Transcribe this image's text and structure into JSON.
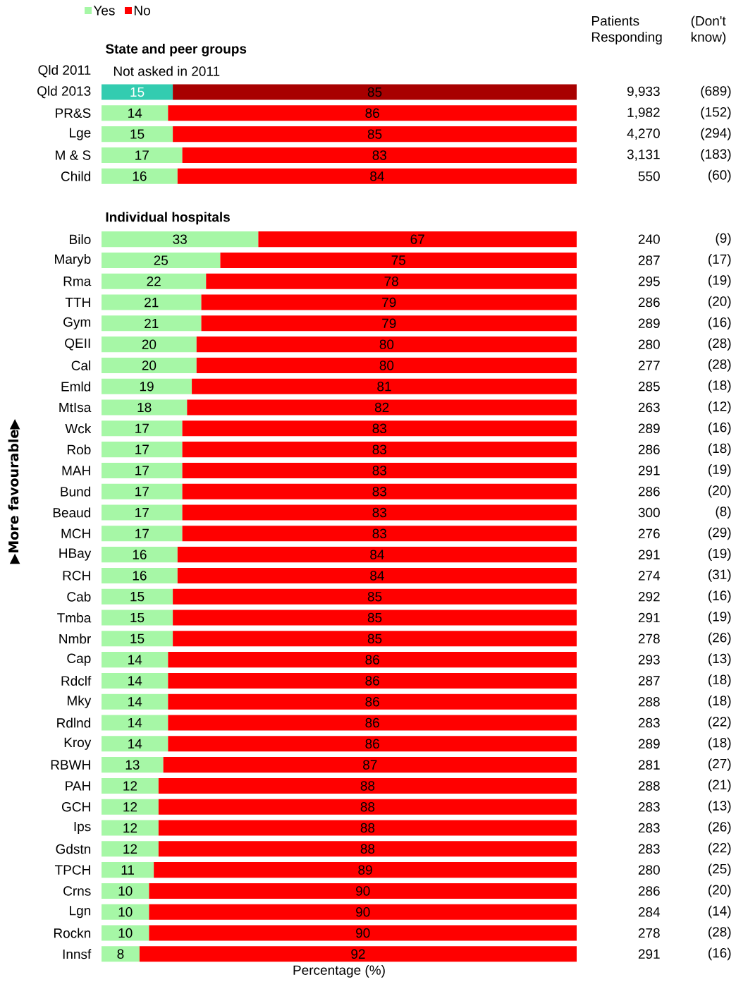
{
  "chart_data": {
    "type": "bar",
    "orientation": "horizontal",
    "stacked": true,
    "data_labels": true,
    "legend": "top left",
    "xlabel": "Percentage (%)",
    "ylabel": "▶More favourable▶",
    "xlim": [
      0,
      100
    ],
    "categories": [
      null,
      "Qld 2011",
      "Qld 2013",
      "PR&S",
      "Lge",
      "M & S",
      "Child",
      null,
      null,
      "Bilo",
      "Maryb",
      "Rma",
      "TTH",
      "Gym",
      "QEII",
      "Cal",
      "Emld",
      "MtIsa",
      "Wck",
      "Rob",
      "MAH",
      "Bund",
      "Beaud",
      "MCH",
      "HBay",
      "RCH",
      "Cab",
      "Tmba",
      "Nmbr",
      "Cap",
      "Rdclf",
      "Mky",
      "Rdlnd",
      "Kroy",
      "RBWH",
      "PAH",
      "GCH",
      "Ips",
      "Gdstn",
      "TPCH",
      "Crns",
      "Lgn",
      "Rockn",
      "Innsf"
    ],
    "series": [
      {
        "name": "Yes",
        "color": "#a6f7a6",
        "values": [
          null,
          null,
          15,
          14,
          15,
          17,
          16,
          null,
          null,
          33,
          25,
          22,
          21,
          21,
          20,
          20,
          19,
          18,
          17,
          17,
          17,
          17,
          17,
          17,
          16,
          16,
          15,
          15,
          15,
          14,
          14,
          14,
          14,
          14,
          13,
          12,
          12,
          12,
          12,
          11,
          10,
          10,
          10,
          8
        ],
        "colors": [
          null,
          null,
          "#33ccb0",
          "#a6f7a6",
          "#a6f7a6",
          "#a6f7a6",
          "#a6f7a6",
          null,
          null,
          "#a6f7a6",
          "#a6f7a6",
          "#a6f7a6",
          "#a6f7a6",
          "#a6f7a6",
          "#a6f7a6",
          "#a6f7a6",
          "#a6f7a6",
          "#a6f7a6",
          "#a6f7a6",
          "#a6f7a6",
          "#a6f7a6",
          "#a6f7a6",
          "#a6f7a6",
          "#a6f7a6",
          "#a6f7a6",
          "#a6f7a6",
          "#a6f7a6",
          "#a6f7a6",
          "#a6f7a6",
          "#a6f7a6",
          "#a6f7a6",
          "#a6f7a6",
          "#a6f7a6",
          "#a6f7a6",
          "#a6f7a6",
          "#a6f7a6",
          "#a6f7a6",
          "#a6f7a6",
          "#a6f7a6",
          "#a6f7a6",
          "#a6f7a6",
          "#a6f7a6",
          "#a6f7a6",
          "#a6f7a6"
        ]
      },
      {
        "name": "No",
        "color": "#ff0000",
        "values": [
          null,
          null,
          85,
          86,
          85,
          83,
          84,
          null,
          null,
          67,
          75,
          78,
          79,
          79,
          80,
          80,
          81,
          82,
          83,
          83,
          83,
          83,
          83,
          83,
          84,
          84,
          85,
          85,
          85,
          86,
          86,
          86,
          86,
          86,
          87,
          88,
          88,
          88,
          88,
          89,
          90,
          90,
          90,
          92
        ],
        "colors": [
          null,
          null,
          "#a80000",
          "#ff0000",
          "#ff0000",
          "#ff0000",
          "#ff0000",
          null,
          null,
          "#ff0000",
          "#ff0000",
          "#ff0000",
          "#ff0000",
          "#ff0000",
          "#ff0000",
          "#ff0000",
          "#ff0000",
          "#ff0000",
          "#ff0000",
          "#ff0000",
          "#ff0000",
          "#ff0000",
          "#ff0000",
          "#ff0000",
          "#ff0000",
          "#ff0000",
          "#ff0000",
          "#ff0000",
          "#ff0000",
          "#ff0000",
          "#ff0000",
          "#ff0000",
          "#ff0000",
          "#ff0000",
          "#ff0000",
          "#ff0000",
          "#ff0000",
          "#ff0000",
          "#ff0000",
          "#ff0000",
          "#ff0000",
          "#ff0000",
          "#ff0000",
          "#ff0000"
        ]
      }
    ],
    "annotations": [
      "State and peer groups",
      "Individual hospitals",
      "Not asked in 2011",
      "Patients Responding",
      "(Don't know)",
      "9,933",
      "(689)",
      "1,982",
      "(152)",
      "4,270",
      "(294)",
      "3,131",
      "(183)",
      "550",
      "(60)",
      "240",
      "(9)",
      "287",
      "(17)",
      "295",
      "(19)",
      "286",
      "(20)",
      "289",
      "(16)",
      "280",
      "(28)",
      "277",
      "(28)",
      "285",
      "(18)",
      "263",
      "(12)",
      "289",
      "(16)",
      "286",
      "(18)",
      "291",
      "(19)",
      "286",
      "(20)",
      "300",
      "(8)",
      "276",
      "(29)",
      "291",
      "(19)",
      "274",
      "(31)",
      "292",
      "(16)",
      "291",
      "(19)",
      "278",
      "(26)",
      "293",
      "(13)",
      "287",
      "(18)",
      "288",
      "(18)",
      "283",
      "(22)",
      "289",
      "(18)",
      "281",
      "(27)",
      "288",
      "(21)",
      "283",
      "(13)",
      "283",
      "(26)",
      "283",
      "(22)",
      "280",
      "(25)",
      "286",
      "(20)",
      "284",
      "(14)",
      "278",
      "(28)",
      "291",
      "(16)"
    ]
  }
}
